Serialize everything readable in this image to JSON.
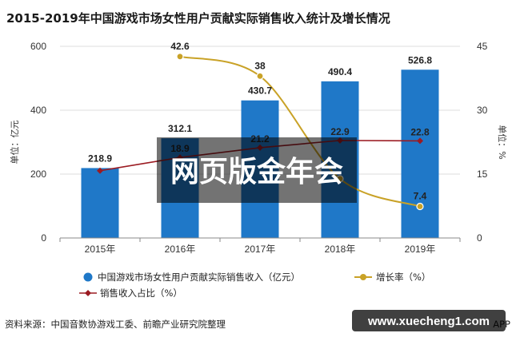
{
  "title": "2015-2019年中国游戏市场女性用户贡献实际销售收入统计及增长情况",
  "source": "资料来源：中国音数协游戏工委、前瞻产业研究院整理",
  "overlay_text": "网页版金年会",
  "site_badge": "www.xuecheng1.com",
  "corner_fragment": "APP",
  "chart_data": {
    "type": "bar",
    "categories": [
      "2015年",
      "2016年",
      "2017年",
      "2018年",
      "2019年"
    ],
    "left_axis": {
      "label": "单位：亿元",
      "ylim": [
        0,
        600
      ],
      "ticks": [
        0,
        200,
        400,
        600
      ]
    },
    "right_axis": {
      "label": "单位：%",
      "ylim": [
        0,
        45
      ],
      "ticks": [
        0,
        15,
        30,
        45
      ]
    },
    "series": [
      {
        "name": "中国游戏市场女性用户贡献实际销售收入（亿元）",
        "type": "bar",
        "axis": "left",
        "color": "#1f78c8",
        "values": [
          218.9,
          312.1,
          430.7,
          490.4,
          526.8
        ],
        "labels": [
          "218.9",
          "312.1",
          "430.7",
          "490.4",
          "526.8"
        ]
      },
      {
        "name": "增长率（%）",
        "type": "line",
        "axis": "right",
        "smooth": true,
        "color": "#c9a227",
        "values": [
          null,
          42.6,
          38,
          13.9,
          7.4
        ],
        "labels": [
          "",
          "42.6",
          "38",
          "",
          "7.4"
        ]
      },
      {
        "name": "销售收入占比（%）",
        "type": "line",
        "axis": "right",
        "color": "#9b1b22",
        "values": [
          15.8,
          18.9,
          21.2,
          22.9,
          22.8
        ],
        "labels": [
          "",
          "18.9",
          "21.2",
          "22.9",
          "22.8"
        ]
      }
    ],
    "grid": true,
    "legend_position": "bottom"
  }
}
